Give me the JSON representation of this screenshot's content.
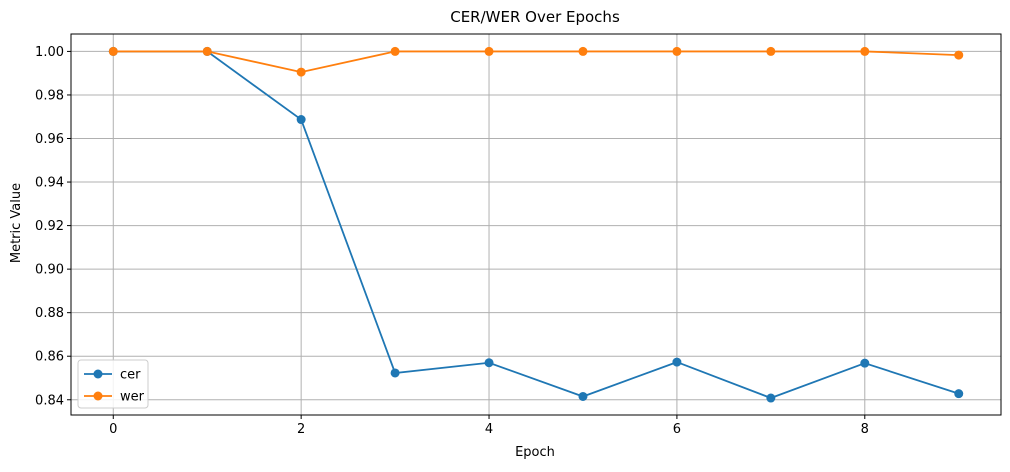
{
  "chart_data": {
    "type": "line",
    "title": "CER/WER Over Epochs",
    "xlabel": "Epoch",
    "ylabel": "Metric Value",
    "x": [
      0,
      1,
      2,
      3,
      4,
      5,
      6,
      7,
      8,
      9
    ],
    "xlim": [
      -0.45,
      9.45
    ],
    "ylim": [
      0.833,
      1.008
    ],
    "xticks": [
      0,
      2,
      4,
      6,
      8
    ],
    "xtick_labels": [
      "0",
      "2",
      "4",
      "6",
      "8"
    ],
    "yticks": [
      0.84,
      0.86,
      0.88,
      0.9,
      0.92,
      0.94,
      0.96,
      0.98,
      1.0
    ],
    "ytick_labels": [
      "0.84",
      "0.86",
      "0.88",
      "0.90",
      "0.92",
      "0.94",
      "0.96",
      "0.98",
      "1.00"
    ],
    "grid": true,
    "legend_position": "lower-left",
    "series": [
      {
        "name": "cer",
        "color": "#1f77b4",
        "marker": "circle",
        "values": [
          1.0,
          1.0,
          0.9687,
          0.8523,
          0.857,
          0.8415,
          0.8573,
          0.8408,
          0.8568,
          0.8428
        ]
      },
      {
        "name": "wer",
        "color": "#ff7f0e",
        "marker": "circle",
        "values": [
          1.0,
          1.0,
          0.9905,
          1.0,
          1.0,
          1.0,
          1.0,
          1.0,
          1.0,
          0.9983
        ]
      }
    ]
  }
}
